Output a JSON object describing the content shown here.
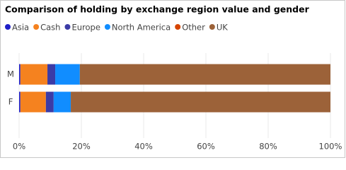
{
  "chart_data": {
    "type": "stacked-bar-horizontal",
    "title": "Comparison of holding by exchange region value and gender",
    "categories": [
      "M",
      "F"
    ],
    "series": [
      {
        "name": "Asia",
        "color": "#1f1fc8",
        "values": [
          0.4,
          0.4
        ]
      },
      {
        "name": "Cash",
        "color": "#f5821f",
        "values": [
          8.7,
          8.2
        ]
      },
      {
        "name": "Europe",
        "color": "#3b3ba6",
        "values": [
          2.5,
          2.5
        ]
      },
      {
        "name": "North America",
        "color": "#118dff",
        "values": [
          7.9,
          5.5
        ]
      },
      {
        "name": "Other",
        "color": "#d64500",
        "values": [
          0,
          0
        ]
      },
      {
        "name": "UK",
        "color": "#9c6239",
        "values": [
          80.5,
          83.4
        ]
      }
    ],
    "xlim": [
      0,
      100
    ],
    "xticks": [
      {
        "value": 0,
        "label": "0%"
      },
      {
        "value": 20,
        "label": "20%"
      },
      {
        "value": 40,
        "label": "40%"
      },
      {
        "value": 60,
        "label": "60%"
      },
      {
        "value": 80,
        "label": "80%"
      },
      {
        "value": 100,
        "label": "100%"
      }
    ],
    "grid": true
  }
}
